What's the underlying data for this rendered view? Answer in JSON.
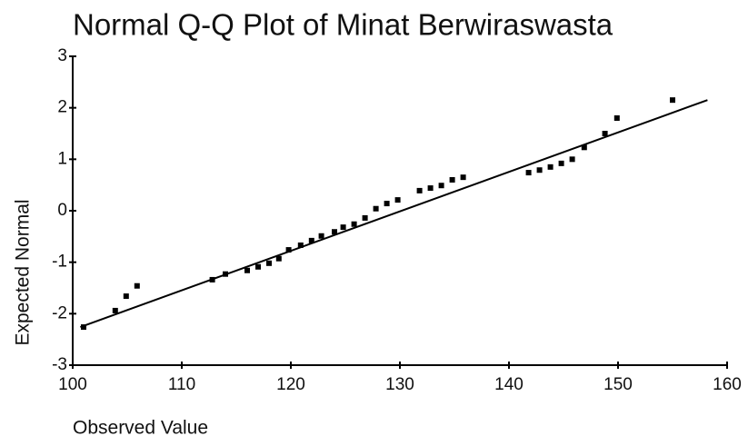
{
  "chart_data": {
    "type": "scatter",
    "title": "Normal Q-Q Plot of Minat Berwiraswasta",
    "x_label": "Observed Value",
    "y_label": "Expected Normal",
    "x": [
      101,
      103.9,
      104.9,
      105.9,
      112.8,
      114,
      116,
      117,
      118,
      118.9,
      119.8,
      120.9,
      121.9,
      122.8,
      124,
      124.8,
      125.8,
      126.8,
      127.8,
      128.8,
      129.8,
      131.8,
      132.8,
      133.8,
      134.8,
      135.8,
      141.8,
      142.8,
      143.8,
      144.8,
      145.8,
      146.9,
      148.8,
      149.9,
      155
    ],
    "y": [
      -2.26,
      -1.94,
      -1.66,
      -1.46,
      -1.34,
      -1.23,
      -1.16,
      -1.09,
      -1.02,
      -0.93,
      -0.76,
      -0.67,
      -0.58,
      -0.49,
      -0.41,
      -0.32,
      -0.26,
      -0.14,
      0.04,
      0.14,
      0.21,
      0.39,
      0.44,
      0.49,
      0.6,
      0.65,
      0.74,
      0.79,
      0.85,
      0.92,
      1.0,
      1.23,
      1.5,
      1.8,
      2.15
    ],
    "color": "#000000",
    "reference_line": {
      "x": [
        100.7,
        158.2
      ],
      "y": [
        -2.26,
        2.15
      ]
    },
    "xlim": [
      100,
      160
    ],
    "xticks": [
      100,
      110,
      120,
      130,
      140,
      150,
      160
    ],
    "ylim": [
      -3,
      3
    ],
    "yticks": [
      -3,
      -2,
      -1,
      0,
      1,
      2,
      3
    ]
  }
}
